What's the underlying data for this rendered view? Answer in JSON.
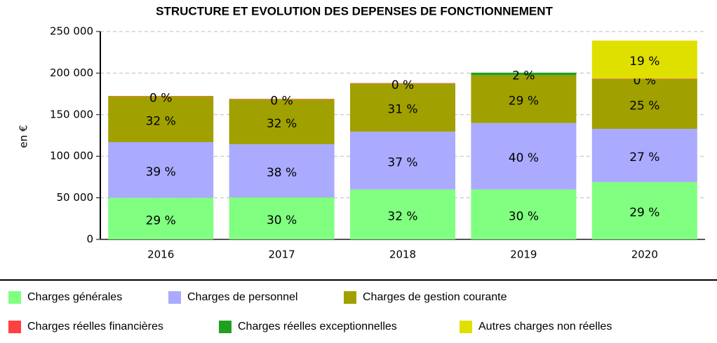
{
  "chart_data": {
    "type": "stacked_bar",
    "title": "STRUCTURE ET EVOLUTION DES DEPENSES DE FONCTIONNEMENT",
    "y_label": "en €",
    "categories": [
      "2016",
      "2017",
      "2018",
      "2019",
      "2020"
    ],
    "ylim": [
      0,
      250000
    ],
    "yticks": [
      0,
      {
        "value": 50000,
        "label": "50 000"
      },
      {
        "value": 100000,
        "label": "100 000"
      },
      {
        "value": 150000,
        "label": "150 000"
      },
      {
        "value": 200000,
        "label": "200 000"
      },
      {
        "value": 250000,
        "label": "250 000"
      }
    ],
    "grid": true,
    "series": [
      {
        "name": "Charges générales",
        "color": "#80ff80",
        "values": [
          50000,
          50500,
          60000,
          60000,
          69000
        ],
        "labels": [
          "29 %",
          "30 %",
          "32 %",
          "30 %",
          "29 %"
        ]
      },
      {
        "name": "Charges de personnel",
        "color": "#aaaaff",
        "values": [
          67000,
          64000,
          69500,
          80000,
          64000
        ],
        "labels": [
          "39 %",
          "38 %",
          "37 %",
          "40 %",
          "27 %"
        ]
      },
      {
        "name": "Charges de gestion courante",
        "color": "#a0a000",
        "values": [
          55000,
          54000,
          58000,
          57500,
          60000
        ],
        "labels": [
          "32 %",
          "32 %",
          "31 %",
          "29 %",
          "25 %"
        ]
      },
      {
        "name": "Charges réelles financières",
        "color": "#ff4040",
        "values": [
          500,
          500,
          500,
          0,
          500
        ],
        "labels": [
          "0 %",
          "0 %",
          "0 %",
          null,
          "0 %"
        ]
      },
      {
        "name": "Charges réelles exceptionnelles",
        "color": "#20a020",
        "values": [
          0,
          0,
          0,
          3000,
          0
        ],
        "labels": [
          null,
          null,
          null,
          "2 %",
          null
        ]
      },
      {
        "name": "Autres charges non réelles",
        "color": "#e0e000",
        "values": [
          0,
          0,
          0,
          0,
          45600
        ],
        "labels": [
          null,
          null,
          null,
          null,
          "19 %"
        ]
      }
    ]
  }
}
